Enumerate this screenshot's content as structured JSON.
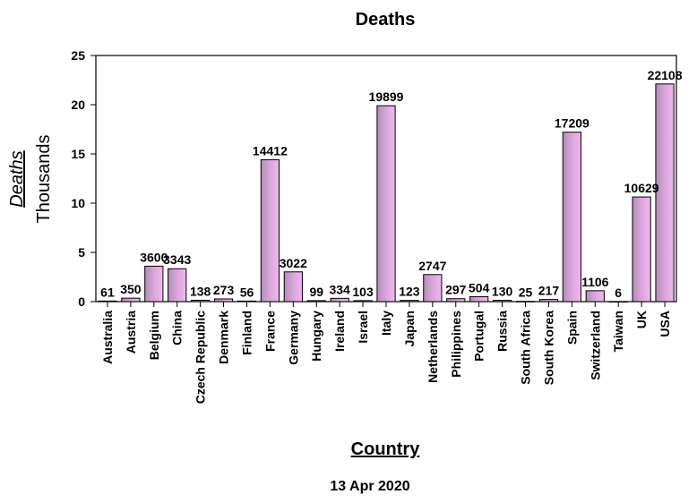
{
  "chart_data": {
    "type": "bar",
    "title": "Deaths",
    "xlabel": "Country",
    "ylabel": "Deaths",
    "yunit": "Thousands",
    "footer": "13 Apr 2020",
    "ylim": [
      0,
      25
    ],
    "yticks": [
      0,
      5,
      10,
      15,
      20,
      25
    ],
    "grid": false,
    "bar_color_start": "#b58bb8",
    "bar_color_end": "#f0b8f0",
    "categories": [
      "Australia",
      "Austria",
      "Belgium",
      "China",
      "Czech Republic",
      "Denmark",
      "Finland",
      "France",
      "Germany",
      "Hungary",
      "Ireland",
      "Israel",
      "Italy",
      "Japan",
      "Netherlands",
      "Philippines",
      "Portugal",
      "Russia",
      "South Africa",
      "South Korea",
      "Spain",
      "Switzerland",
      "Taiwan",
      "UK",
      "USA"
    ],
    "values": [
      61,
      350,
      3600,
      3343,
      138,
      273,
      56,
      14412,
      3022,
      99,
      334,
      103,
      19899,
      123,
      2747,
      297,
      504,
      130,
      25,
      217,
      17209,
      1106,
      6,
      10629,
      22108
    ],
    "data_labels": [
      "61",
      "350",
      "3600",
      "3343",
      "138",
      "273",
      "56",
      "14412",
      "3022",
      "99",
      "334",
      "103",
      "19899",
      "123",
      "2747",
      "297",
      "504",
      "130",
      "25",
      "217",
      "17209",
      "1106",
      "6",
      "10629",
      "22108"
    ]
  }
}
